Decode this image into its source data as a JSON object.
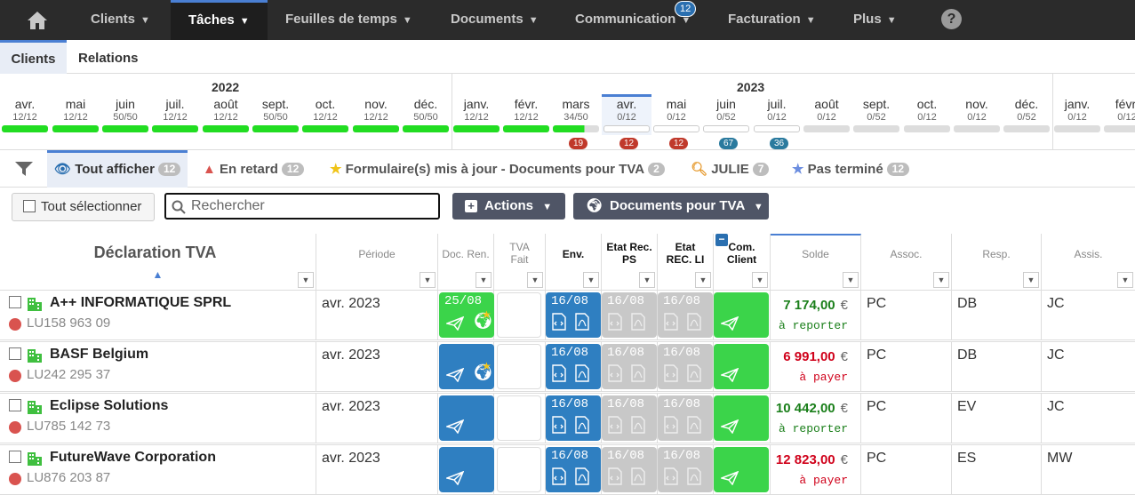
{
  "nav": {
    "clients": "Clients",
    "taches": "Tâches",
    "feuilles": "Feuilles de temps",
    "documents": "Documents",
    "communication": "Communication",
    "communication_badge": "12",
    "facturation": "Facturation",
    "plus": "Plus",
    "help": "?"
  },
  "subtabs": {
    "clients": "Clients",
    "relations": "Relations"
  },
  "timeline": {
    "years": [
      "2022",
      "2023"
    ],
    "months": [
      {
        "name": "avr.",
        "count": "12/12",
        "fill": 1
      },
      {
        "name": "mai",
        "count": "12/12",
        "fill": 1
      },
      {
        "name": "juin",
        "count": "50/50",
        "fill": 1
      },
      {
        "name": "juil.",
        "count": "12/12",
        "fill": 1
      },
      {
        "name": "août",
        "count": "12/12",
        "fill": 1
      },
      {
        "name": "sept.",
        "count": "50/50",
        "fill": 1
      },
      {
        "name": "oct.",
        "count": "12/12",
        "fill": 1
      },
      {
        "name": "nov.",
        "count": "12/12",
        "fill": 1
      },
      {
        "name": "déc.",
        "count": "50/50",
        "fill": 1
      },
      {
        "name": "janv.",
        "count": "12/12",
        "fill": 1
      },
      {
        "name": "févr.",
        "count": "12/12",
        "fill": 1
      },
      {
        "name": "mars",
        "count": "34/50",
        "fill": 0.68,
        "badge": "19",
        "badge_color": "#c0392b"
      },
      {
        "name": "avr.",
        "count": "0/12",
        "fill": 0,
        "badge": "12",
        "badge_color": "#c0392b",
        "current": true
      },
      {
        "name": "mai",
        "count": "0/12",
        "fill": 0,
        "badge": "12",
        "badge_color": "#c0392b"
      },
      {
        "name": "juin",
        "count": "0/52",
        "fill": 0,
        "badge": "67",
        "badge_color": "#2a7a9e"
      },
      {
        "name": "juil.",
        "count": "0/12",
        "fill": 0,
        "badge": "36",
        "badge_color": "#2a7a9e"
      },
      {
        "name": "août",
        "count": "0/12",
        "fill": 0
      },
      {
        "name": "sept.",
        "count": "0/52",
        "fill": 0
      },
      {
        "name": "oct.",
        "count": "0/12",
        "fill": 0
      },
      {
        "name": "nov.",
        "count": "0/12",
        "fill": 0
      },
      {
        "name": "déc.",
        "count": "0/52",
        "fill": 0
      },
      {
        "name": "janv.",
        "count": "0/12",
        "fill": 0
      },
      {
        "name": "févr.",
        "count": "0/12",
        "fill": 0
      }
    ]
  },
  "filters": {
    "tout": "Tout afficher",
    "tout_count": "12",
    "retard": "En retard",
    "retard_count": "12",
    "formulaires": "Formulaire(s) mis à jour - Documents pour TVA",
    "formulaires_count": "2",
    "julie": "JULIE",
    "julie_count": "7",
    "pas_termine": "Pas terminé",
    "pas_termine_count": "12"
  },
  "toolbar": {
    "select_all": "Tout sélectionner",
    "search_placeholder": "Rechercher",
    "actions": "Actions",
    "docs_tva": "Documents pour TVA"
  },
  "columns": {
    "declaration": "Déclaration TVA",
    "periode": "Période",
    "doc_ren": "Doc. Ren.",
    "tva_fait": "TVA\nFait",
    "env": "Env.",
    "etat_ps": "Etat Rec.\nPS",
    "etat_li": "Etat\nREC. LI",
    "com_client": "Com.\nClient",
    "solde": "Solde",
    "assoc": "Assoc.",
    "resp": "Resp.",
    "assis": "Assis."
  },
  "rows": [
    {
      "name": "A++ INFORMATIQUE SPRL",
      "id": "LU158 963 09",
      "periode": "avr. 2023",
      "docren_date": "25/08",
      "docren_color": "green",
      "env": "16/08",
      "ps": "16/08",
      "li": "16/08",
      "amount": "7 174,00",
      "currency": "€",
      "amount_color": "#1a7f1a",
      "status": "à reporter",
      "status_color": "#1a7f1a",
      "assoc": "PC",
      "resp": "DB",
      "assis": "JC"
    },
    {
      "name": "BASF Belgium",
      "id": "LU242 295 37",
      "periode": "avr. 2023",
      "docren_date": "",
      "docren_color": "blue",
      "env": "16/08",
      "ps": "16/08",
      "li": "16/08",
      "amount": "6 991,00",
      "currency": "€",
      "amount_color": "#d0021b",
      "status": "à payer",
      "status_color": "#d0021b",
      "assoc": "PC",
      "resp": "DB",
      "assis": "JC"
    },
    {
      "name": "Eclipse Solutions",
      "id": "LU785 142 73",
      "periode": "avr. 2023",
      "docren_date": "",
      "docren_color": "blue",
      "env": "16/08",
      "ps": "16/08",
      "li": "16/08",
      "amount": "10 442,00",
      "currency": "€",
      "amount_color": "#1a7f1a",
      "status": "à reporter",
      "status_color": "#1a7f1a",
      "assoc": "PC",
      "resp": "EV",
      "assis": "JC"
    },
    {
      "name": "FutureWave Corporation",
      "id": "LU876 203 87",
      "periode": "avr. 2023",
      "docren_date": "",
      "docren_color": "blue",
      "env": "16/08",
      "ps": "16/08",
      "li": "16/08",
      "amount": "12 823,00",
      "currency": "€",
      "amount_color": "#d0021b",
      "status": "à payer",
      "status_color": "#d0021b",
      "assoc": "PC",
      "resp": "ES",
      "assis": "MW"
    }
  ]
}
